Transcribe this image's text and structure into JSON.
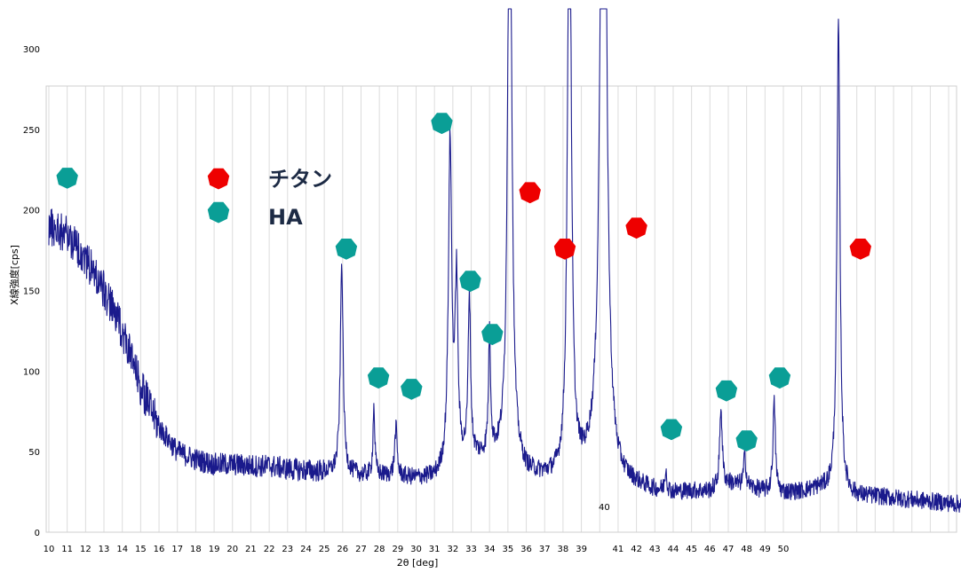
{
  "chart_data": {
    "type": "line",
    "xlabel": "2θ [deg]",
    "ylabel": "X線強度[cps]",
    "xlim": [
      10,
      60
    ],
    "ylim": [
      0,
      300
    ],
    "y_ticks": [
      "0",
      "50",
      "100",
      "150",
      "200",
      "250",
      "300"
    ],
    "x_tick_labels": [
      "10",
      "11",
      "12",
      "13",
      "14",
      "15",
      "16",
      "17",
      "18",
      "19",
      "20",
      "21",
      "22",
      "23",
      "24",
      "25",
      "26",
      "27",
      "28",
      "29",
      "30",
      "31",
      "32",
      "33",
      "34",
      "35",
      "36",
      "37",
      "38",
      "39",
      "41",
      "42",
      "43",
      "44",
      "45",
      "46",
      "47",
      "48",
      "49",
      "50"
    ],
    "x_tick_values": [
      10,
      11,
      12,
      13,
      14,
      15,
      16,
      17,
      18,
      19,
      20,
      21,
      22,
      23,
      24,
      25,
      26,
      27,
      28,
      29,
      30,
      31,
      32,
      33,
      34,
      35,
      36,
      37,
      38,
      39,
      41,
      42,
      43,
      44,
      45,
      46,
      47,
      48,
      49,
      50
    ],
    "annotation_40": "40",
    "grid": true,
    "series": [
      {
        "color": "#1a1a8c",
        "baseline": [
          [
            10,
            190
          ],
          [
            11,
            185
          ],
          [
            12,
            170
          ],
          [
            13,
            150
          ],
          [
            14,
            125
          ],
          [
            15,
            90
          ],
          [
            16,
            65
          ],
          [
            17,
            50
          ],
          [
            18,
            45
          ],
          [
            19,
            42
          ],
          [
            20,
            42
          ],
          [
            21,
            41
          ],
          [
            22,
            41
          ],
          [
            23,
            39
          ],
          [
            24,
            38
          ],
          [
            25,
            37
          ],
          [
            26,
            37
          ],
          [
            27,
            35
          ],
          [
            28,
            35
          ],
          [
            29,
            34
          ],
          [
            30,
            33
          ],
          [
            31,
            33
          ],
          [
            32,
            40
          ],
          [
            33,
            45
          ],
          [
            34,
            45
          ],
          [
            35,
            45
          ],
          [
            36,
            35
          ],
          [
            37,
            33
          ],
          [
            38,
            32
          ],
          [
            39,
            35
          ],
          [
            40,
            40
          ],
          [
            41,
            30
          ],
          [
            42,
            28
          ],
          [
            43,
            25
          ],
          [
            44,
            24
          ],
          [
            45,
            25
          ],
          [
            46,
            25
          ],
          [
            47,
            30
          ],
          [
            48,
            28
          ],
          [
            49,
            25
          ],
          [
            50,
            24
          ],
          [
            51,
            25
          ],
          [
            52,
            27
          ],
          [
            53,
            24
          ],
          [
            54,
            22
          ],
          [
            55,
            22
          ],
          [
            56,
            21
          ],
          [
            57,
            20
          ],
          [
            58,
            19
          ],
          [
            59,
            18
          ],
          [
            60,
            17
          ]
        ],
        "peaks": [
          {
            "x": 25.95,
            "h": 130,
            "w": 0.09
          },
          {
            "x": 27.7,
            "h": 42,
            "w": 0.06
          },
          {
            "x": 28.9,
            "h": 30,
            "w": 0.08
          },
          {
            "x": 31.85,
            "h": 200,
            "w": 0.11
          },
          {
            "x": 32.2,
            "h": 110,
            "w": 0.09
          },
          {
            "x": 32.9,
            "h": 100,
            "w": 0.08
          },
          {
            "x": 34.0,
            "h": 75,
            "w": 0.07
          },
          {
            "x": 35.1,
            "h": 440,
            "w": 0.12
          },
          {
            "x": 38.35,
            "h": 400,
            "w": 0.12
          },
          {
            "x": 40.2,
            "h": 650,
            "w": 0.16
          },
          {
            "x": 43.6,
            "h": 14,
            "w": 0.06
          },
          {
            "x": 46.6,
            "h": 50,
            "w": 0.08
          },
          {
            "x": 47.9,
            "h": 20,
            "w": 0.07
          },
          {
            "x": 49.5,
            "h": 55,
            "w": 0.08
          },
          {
            "x": 53.0,
            "h": 290,
            "w": 0.1
          }
        ]
      }
    ],
    "legend": [
      {
        "marker": "red-heptagon",
        "label": "チタン",
        "color": "#ee0000"
      },
      {
        "marker": "teal-heptagon",
        "label": "HA",
        "color": "#0a9e96"
      }
    ],
    "markers": [
      {
        "type": "HA",
        "x": 11.0,
        "y": 220
      },
      {
        "type": "HA",
        "x": 26.2,
        "y": 176
      },
      {
        "type": "HA",
        "x": 27.95,
        "y": 96
      },
      {
        "type": "HA",
        "x": 29.75,
        "y": 89
      },
      {
        "type": "HA",
        "x": 31.4,
        "y": 254
      },
      {
        "type": "HA",
        "x": 32.95,
        "y": 156
      },
      {
        "type": "HA",
        "x": 34.15,
        "y": 123
      },
      {
        "type": "HA",
        "x": 43.9,
        "y": 64
      },
      {
        "type": "HA",
        "x": 46.9,
        "y": 88
      },
      {
        "type": "HA",
        "x": 48.0,
        "y": 57
      },
      {
        "type": "HA",
        "x": 49.8,
        "y": 96
      },
      {
        "type": "Ti",
        "x": 36.2,
        "y": 211
      },
      {
        "type": "Ti",
        "x": 38.1,
        "y": 176
      },
      {
        "type": "Ti",
        "x": 42.0,
        "y": 189
      },
      {
        "type": "Ti",
        "x": 54.2,
        "y": 176
      }
    ]
  }
}
